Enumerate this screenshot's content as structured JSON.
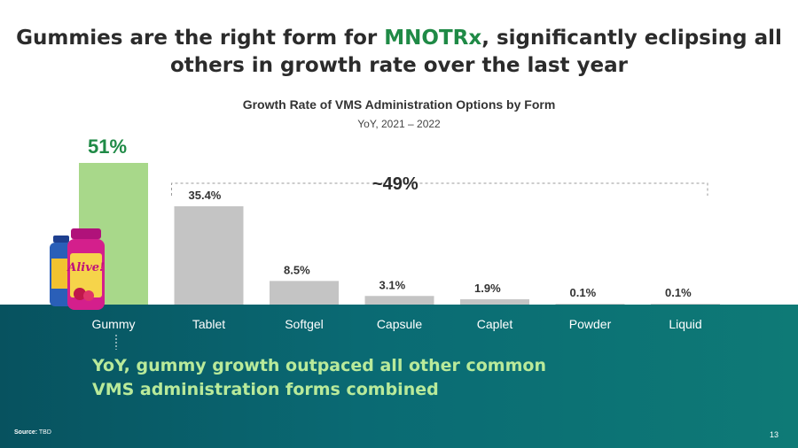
{
  "headline": {
    "part1": "Gummies are the right form for ",
    "brand": "MNOTRx",
    "part2": ", significantly eclipsing all others in growth rate over the last year"
  },
  "chart_data": {
    "type": "bar",
    "title": "Growth Rate of VMS Administration Options by Form",
    "subtitle": "YoY, 2021 – 2022",
    "categories": [
      "Gummy",
      "Tablet",
      "Softgel",
      "Capsule",
      "Caplet",
      "Powder",
      "Liquid"
    ],
    "values": [
      51,
      35.4,
      8.5,
      3.1,
      1.9,
      0.1,
      0.1
    ],
    "value_labels": [
      "51%",
      "35.4%",
      "8.5%",
      "3.1%",
      "1.9%",
      "0.1%",
      "0.1%"
    ],
    "highlight_index": 0,
    "bracket_label": "~49%",
    "ylim": [
      0,
      51
    ],
    "grid": false,
    "colors": {
      "highlight": "#a8d88a",
      "default": "#c4c4c4",
      "highlight_text": "#1f8a46"
    }
  },
  "product": {
    "brand_text": "Alive!"
  },
  "takeaway": {
    "line1": "YoY, gummy growth outpaced all other common",
    "line2": "VMS administration forms combined"
  },
  "footer": {
    "source_label": "Source:",
    "source_value": "TBD",
    "page_number": "13"
  }
}
